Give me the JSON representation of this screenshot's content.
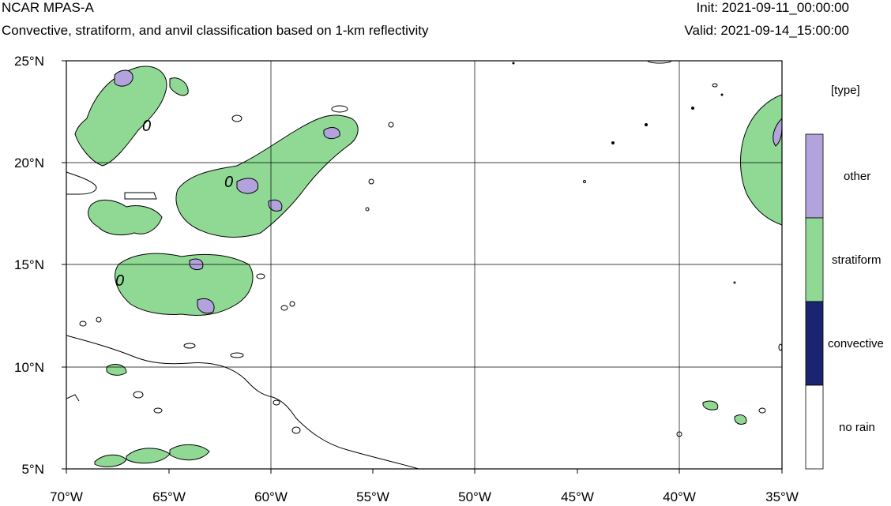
{
  "header": {
    "title": "NCAR MPAS-A",
    "subtitle": "Convective, stratiform, and anvil classification based on 1-km reflectivity",
    "init": "Init: 2021-09-11_00:00:00",
    "valid": "Valid: 2021-09-14_15:00:00"
  },
  "map": {
    "lon_ticks": [
      "70°W",
      "65°W",
      "60°W",
      "55°W",
      "50°W",
      "45°W",
      "40°W",
      "35°W"
    ],
    "lat_ticks": [
      "25°N",
      "20°N",
      "15°N",
      "10°N",
      "5°N"
    ],
    "contour_zero_label": "0",
    "grid": true
  },
  "legend": {
    "title": "[type]",
    "items": [
      {
        "label": "other",
        "color": "#b3a3dc"
      },
      {
        "label": "stratiform",
        "color": "#8fd994"
      },
      {
        "label": "convective",
        "color": "#1a2470"
      },
      {
        "label": "no rain",
        "color": "#ffffff"
      }
    ]
  }
}
